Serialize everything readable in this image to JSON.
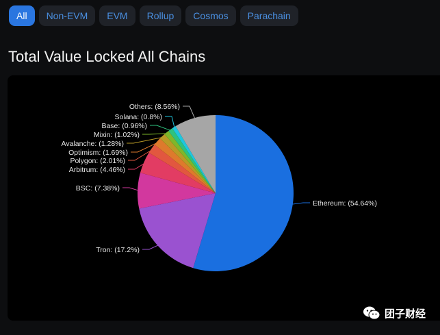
{
  "tabs": [
    {
      "label": "All",
      "active": true
    },
    {
      "label": "Non-EVM",
      "active": false
    },
    {
      "label": "EVM",
      "active": false
    },
    {
      "label": "Rollup",
      "active": false
    },
    {
      "label": "Cosmos",
      "active": false
    },
    {
      "label": "Parachain",
      "active": false
    }
  ],
  "page_title": "Total Value Locked All Chains",
  "watermark": "团子财经",
  "chart_data": {
    "type": "pie",
    "start": "top, clockwise",
    "slices": [
      {
        "name": "Ethereum",
        "value": 54.64,
        "label": "Ethereum: (54.64%)",
        "color": "#1a6fe0"
      },
      {
        "name": "Tron",
        "value": 17.2,
        "label": "Tron: (17.2%)",
        "color": "#9a52d0"
      },
      {
        "name": "BSC",
        "value": 7.38,
        "label": "BSC: (7.38%)",
        "color": "#d2389e"
      },
      {
        "name": "Arbitrum",
        "value": 4.46,
        "label": "Arbitrum: (4.46%)",
        "color": "#e23c63"
      },
      {
        "name": "Polygon",
        "value": 2.01,
        "label": "Polygon: (2.01%)",
        "color": "#e2573f"
      },
      {
        "name": "Optimism",
        "value": 1.69,
        "label": "Optimism: (1.69%)",
        "color": "#de7a2c"
      },
      {
        "name": "Avalanche",
        "value": 1.28,
        "label": "Avalanche: (1.28%)",
        "color": "#b99a26"
      },
      {
        "name": "Mixin",
        "value": 1.02,
        "label": "Mixin: (1.02%)",
        "color": "#7eb72a"
      },
      {
        "name": "Base",
        "value": 0.96,
        "label": "Base: (0.96%)",
        "color": "#2ec27e"
      },
      {
        "name": "Solana",
        "value": 0.8,
        "label": "Solana: (0.8%)",
        "color": "#1ec6de"
      },
      {
        "name": "Others",
        "value": 8.56,
        "label": "Others: (8.56%)",
        "color": "#a6a6a6"
      }
    ]
  }
}
